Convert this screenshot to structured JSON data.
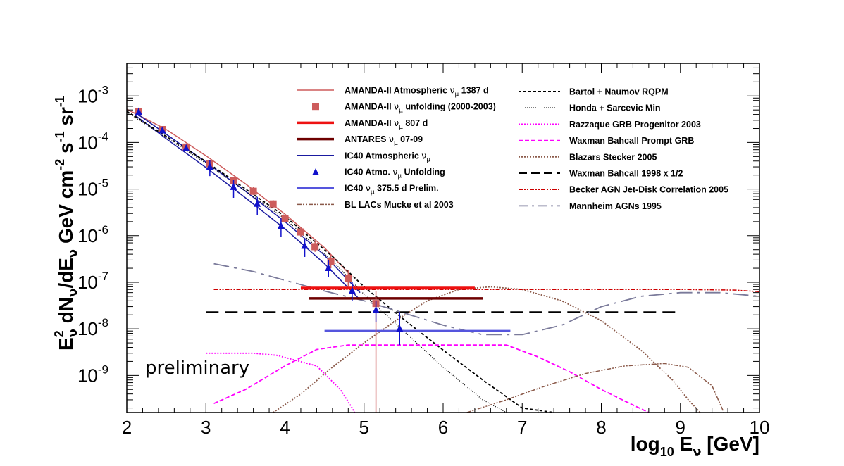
{
  "chart_data": {
    "type": "line",
    "log_y": true,
    "xlim": [
      2,
      10
    ],
    "ylim": [
      1.6e-10,
      0.005
    ],
    "x_ticks": [
      2,
      3,
      4,
      5,
      6,
      7,
      8,
      9,
      10
    ],
    "y_ticks": [
      {
        "value": 1e-09,
        "base": "10",
        "exp": "-9"
      },
      {
        "value": 1e-08,
        "base": "10",
        "exp": "-8"
      },
      {
        "value": 1e-07,
        "base": "10",
        "exp": "-7"
      },
      {
        "value": 1e-06,
        "base": "10",
        "exp": "-6"
      },
      {
        "value": 1e-05,
        "base": "10",
        "exp": "-5"
      },
      {
        "value": 0.0001,
        "base": "10",
        "exp": "-4"
      },
      {
        "value": 0.001,
        "base": "10",
        "exp": "-3"
      }
    ],
    "xlabel": {
      "pre": "log",
      "sub": "10",
      "mid": " E",
      "sub2": "ν",
      "post": " [GeV]"
    },
    "ylabel": {
      "p1": "E",
      "p1_sup": "2",
      "p1_sub": "ν",
      "p2": " dN",
      "p2_sub": "ν",
      "p3": "/dE",
      "p3_sub": "ν",
      "p4": " GeV cm",
      "p4_sup": "-2",
      "p5": " s",
      "p5_sup": "-1",
      "p6": " sr",
      "p6_sup": "-1"
    },
    "annotation": "preliminary",
    "series": [
      {
        "name": "AMANDA-II Atmospheric νμ 1387 d",
        "color": "#cd5c5c",
        "dash": "",
        "width": 1.5,
        "points": [
          [
            2.0,
            0.00052
          ],
          [
            2.5,
            0.00019
          ],
          [
            3.0,
            5.2e-05
          ],
          [
            3.5,
            1.3e-05
          ],
          [
            4.0,
            2.9e-06
          ],
          [
            4.5,
            5.5e-07
          ],
          [
            4.85,
            1.3e-07
          ]
        ]
      },
      {
        "name": "IC40 Atmospheric νμ",
        "color": "#1a1aa0",
        "dash": "",
        "width": 1.5,
        "points": [
          [
            2.1,
            0.00045
          ],
          [
            2.5,
            0.00015
          ],
          [
            3.0,
            3.8e-05
          ],
          [
            3.5,
            9e-06
          ],
          [
            4.0,
            2e-06
          ],
          [
            4.5,
            3.8e-07
          ],
          [
            4.95,
            6e-08
          ]
        ]
      },
      {
        "name": "IC40 Atmospheric νμ (lower band)",
        "color": "#1a1aa0",
        "dash": "",
        "width": 1.5,
        "points": [
          [
            2.1,
            0.00039
          ],
          [
            2.5,
            0.00012
          ],
          [
            3.0,
            2.9e-05
          ],
          [
            3.5,
            6.5e-06
          ],
          [
            4.0,
            1.4e-06
          ],
          [
            4.5,
            2.5e-07
          ],
          [
            4.95,
            4.2e-08
          ]
        ]
      },
      {
        "name": "Bartol + Naumov RQPM",
        "color": "#000000",
        "dash": "4,3",
        "width": 1.8,
        "points": [
          [
            2.0,
            0.00047
          ],
          [
            3.0,
            3.9e-05
          ],
          [
            4.0,
            2.6e-06
          ],
          [
            4.6,
            3.6e-07
          ],
          [
            5.0,
            8e-08
          ],
          [
            5.5,
            1.6e-08
          ],
          [
            6.0,
            3.5e-09
          ],
          [
            6.5,
            8e-10
          ],
          [
            7.0,
            2e-10
          ],
          [
            7.4,
            1.6e-10
          ]
        ]
      },
      {
        "name": "Honda + Sarcevic Min",
        "color": "#000000",
        "dash": "1,2",
        "width": 1.3,
        "points": [
          [
            2.0,
            0.00045
          ],
          [
            3.0,
            3.6e-05
          ],
          [
            4.0,
            2.3e-06
          ],
          [
            4.6,
            2.9e-07
          ],
          [
            5.0,
            5.5e-08
          ],
          [
            5.5,
            9e-09
          ],
          [
            6.0,
            1.5e-09
          ],
          [
            6.5,
            3e-10
          ],
          [
            6.8,
            1.6e-10
          ]
        ]
      },
      {
        "name": "Razzaque GRB Progenitor 2003",
        "color": "#ff00ff",
        "dash": "2,2",
        "width": 1.8,
        "points": [
          [
            3.0,
            3e-09
          ],
          [
            3.6,
            3e-09
          ],
          [
            3.9,
            2.7e-09
          ],
          [
            4.4,
            1.6e-09
          ],
          [
            4.7,
            5e-10
          ],
          [
            4.85,
            2e-10
          ],
          [
            4.88,
            1.6e-10
          ]
        ]
      },
      {
        "name": "Waxman Bahcall Prompt GRB",
        "color": "#ff00ff",
        "dash": "6,3",
        "width": 1.8,
        "points": [
          [
            3.1,
            2.5e-10
          ],
          [
            3.5,
            5e-10
          ],
          [
            4.0,
            1.6e-09
          ],
          [
            4.4,
            3.6e-09
          ],
          [
            4.8,
            4.5e-09
          ],
          [
            5.5,
            4.5e-09
          ],
          [
            6.2,
            4.5e-09
          ],
          [
            6.8,
            4.5e-09
          ],
          [
            7.2,
            2.5e-09
          ],
          [
            7.6,
            1.2e-09
          ],
          [
            8.0,
            5e-10
          ],
          [
            8.3,
            2.8e-10
          ],
          [
            8.6,
            1.6e-10
          ]
        ]
      },
      {
        "name": "Blazars Stecker 2005",
        "color": "#8b5a4a",
        "dash": "2,2",
        "width": 1.8,
        "points": [
          [
            3.85,
            1.6e-10
          ],
          [
            4.2,
            4e-10
          ],
          [
            4.6,
            1.5e-09
          ],
          [
            5.0,
            5e-09
          ],
          [
            5.4,
            1.5e-08
          ],
          [
            5.8,
            4e-08
          ],
          [
            6.2,
            7e-08
          ],
          [
            6.6,
            8e-08
          ],
          [
            7.0,
            7e-08
          ],
          [
            7.5,
            4e-08
          ],
          [
            8.0,
            1.5e-08
          ],
          [
            8.5,
            3.5e-09
          ],
          [
            8.9,
            8e-10
          ],
          [
            9.1,
            3e-10
          ],
          [
            9.25,
            1.6e-10
          ]
        ]
      },
      {
        "name": "Waxman Bahcall 1998 x 1/2",
        "color": "#000000",
        "dash": "18,9",
        "width": 2,
        "points": [
          [
            3.0,
            2.3e-08
          ],
          [
            9.0,
            2.3e-08
          ]
        ]
      },
      {
        "name": "Becker AGN Jet-Disk Correlation 2005",
        "color": "#cc0000",
        "dash": "6,2,2,2,2,2",
        "width": 1.5,
        "points": [
          [
            3.1,
            7e-08
          ],
          [
            6.0,
            7e-08
          ],
          [
            8.0,
            7e-08
          ],
          [
            9.0,
            7e-08
          ],
          [
            9.7,
            6.8e-08
          ],
          [
            10.0,
            6.3e-08
          ]
        ]
      },
      {
        "name": "Mannheim AGNs 1995",
        "color": "#7a7a9a",
        "dash": "22,7,4,7",
        "width": 1.8,
        "points": [
          [
            3.1,
            2.5e-07
          ],
          [
            3.6,
            1.7e-07
          ],
          [
            4.0,
            1.1e-07
          ],
          [
            4.5,
            6.5e-08
          ],
          [
            5.0,
            4e-08
          ],
          [
            5.5,
            2.2e-08
          ],
          [
            6.0,
            1.2e-08
          ],
          [
            6.5,
            7.5e-09
          ],
          [
            7.0,
            7.5e-09
          ],
          [
            7.5,
            1.2e-08
          ],
          [
            8.0,
            3e-08
          ],
          [
            8.5,
            5e-08
          ],
          [
            9.0,
            6e-08
          ],
          [
            9.5,
            6e-08
          ],
          [
            10.0,
            5e-08
          ]
        ]
      },
      {
        "name": "BL LACs Mucke et al 2003",
        "color": "#8b5a4a",
        "dash": "6,2,2,2,2,2",
        "width": 1.5,
        "points": [
          [
            6.3,
            1.6e-10
          ],
          [
            6.8,
            3e-10
          ],
          [
            7.3,
            6e-10
          ],
          [
            7.8,
            1.1e-09
          ],
          [
            8.3,
            1.6e-09
          ],
          [
            8.8,
            1.8e-09
          ],
          [
            9.1,
            1.5e-09
          ],
          [
            9.4,
            6e-10
          ],
          [
            9.55,
            1.6e-10
          ]
        ]
      }
    ],
    "limits": [
      {
        "name": "AMANDA-II νμ 807 d",
        "color": "#ee1111",
        "width": 4,
        "x": [
          4.2,
          6.4
        ],
        "y": 7.5e-08
      },
      {
        "name": "ANTARES νμ 07-09",
        "color": "#6e0000",
        "width": 3.5,
        "x": [
          4.3,
          6.5
        ],
        "y": 4.5e-08
      },
      {
        "name": "IC40 νμ 375.5 d Prelim.",
        "color": "#5555dd",
        "width": 3,
        "x": [
          4.5,
          6.85
        ],
        "y": 9e-09
      }
    ],
    "scatter": [
      {
        "name": "AMANDA-II νμ unfolding (2000-2003)",
        "color": "#cd5c5c",
        "marker": "square",
        "points": [
          {
            "x": 2.15,
            "y": 0.00046,
            "lo": 0.00039,
            "hi": 0.00052
          },
          {
            "x": 2.45,
            "y": 0.00019,
            "lo": 0.00017,
            "hi": 0.00021
          },
          {
            "x": 2.75,
            "y": 8e-05,
            "lo": 7e-05,
            "hi": 9e-05
          },
          {
            "x": 3.05,
            "y": 3.5e-05,
            "lo": 3e-05,
            "hi": 4e-05
          },
          {
            "x": 3.35,
            "y": 1.5e-05,
            "lo": 1.3e-05,
            "hi": 1.7e-05
          },
          {
            "x": 3.6,
            "y": 9e-06,
            "lo": 7.5e-06,
            "hi": 1.1e-05
          },
          {
            "x": 3.85,
            "y": 4.8e-06,
            "lo": 4e-06,
            "hi": 5.8e-06
          },
          {
            "x": 4.0,
            "y": 2.3e-06,
            "lo": 1.9e-06,
            "hi": 2.8e-06
          },
          {
            "x": 4.2,
            "y": 1.2e-06,
            "lo": 9.5e-07,
            "hi": 1.5e-06
          },
          {
            "x": 4.38,
            "y": 5.8e-07,
            "lo": 4.5e-07,
            "hi": 7.5e-07
          },
          {
            "x": 4.58,
            "y": 2.8e-07,
            "lo": 2e-07,
            "hi": 4e-07
          },
          {
            "x": 4.8,
            "y": 1.2e-07,
            "lo": 8e-08,
            "hi": 1.8e-07
          },
          {
            "x": 5.15,
            "y": 3.5e-08,
            "lo": 1.6e-10,
            "hi": 6.5e-08
          }
        ]
      },
      {
        "name": "IC40 Atmo. νμ Unfolding",
        "color": "#1111cc",
        "marker": "triangle",
        "points": [
          {
            "x": 2.15,
            "y": 0.00045,
            "lo": 0.00037,
            "hi": 0.00056
          },
          {
            "x": 2.45,
            "y": 0.00018,
            "lo": 0.00016,
            "hi": 0.0002
          },
          {
            "x": 2.75,
            "y": 7.5e-05,
            "lo": 6.8e-05,
            "hi": 8.5e-05
          },
          {
            "x": 3.05,
            "y": 3e-05,
            "lo": 1.9e-05,
            "hi": 4.2e-05
          },
          {
            "x": 3.35,
            "y": 1.1e-05,
            "lo": 6.5e-06,
            "hi": 1.6e-05
          },
          {
            "x": 3.65,
            "y": 4.8e-06,
            "lo": 2.8e-06,
            "hi": 6.8e-06
          },
          {
            "x": 3.95,
            "y": 1.6e-06,
            "lo": 9.5e-07,
            "hi": 2.3e-06
          },
          {
            "x": 4.25,
            "y": 6e-07,
            "lo": 3.5e-07,
            "hi": 8.5e-07
          },
          {
            "x": 4.55,
            "y": 2e-07,
            "lo": 1.3e-07,
            "hi": 3e-07
          },
          {
            "x": 4.85,
            "y": 6.5e-08,
            "lo": 4e-08,
            "hi": 1e-07
          },
          {
            "x": 5.15,
            "y": 2.5e-08,
            "lo": 1.4e-08,
            "hi": 4e-08
          },
          {
            "x": 5.45,
            "y": 1e-08,
            "lo": 4.5e-09,
            "hi": 2.3e-08
          }
        ]
      }
    ],
    "legend_left": [
      {
        "kind": "line",
        "color": "#cd5c5c",
        "width": 1.5,
        "t1": "AMANDA-II Atmospheric ",
        "sym": "ν",
        "sub": "μ",
        "t2": " 1387 d"
      },
      {
        "kind": "square",
        "color": "#cd5c5c",
        "t1": "AMANDA-II ",
        "sym": "ν",
        "sub": "μ",
        "t2": " unfolding (2000-2003)"
      },
      {
        "kind": "line",
        "color": "#ee1111",
        "width": 3.5,
        "t1": "AMANDA-II ",
        "sym": "ν",
        "sub": "μ",
        "t2": " 807 d"
      },
      {
        "kind": "line",
        "color": "#6e0000",
        "width": 3.5,
        "t1": "ANTARES ",
        "sym": "ν",
        "sub": "μ",
        "t2": " 07-09"
      },
      {
        "kind": "line",
        "color": "#1a1aa0",
        "width": 1.5,
        "t1": "IC40 Atmospheric ",
        "sym": "ν",
        "sub": "μ",
        "t2": ""
      },
      {
        "kind": "triangle",
        "color": "#1111cc",
        "t1": "IC40 Atmo. ",
        "sym": "ν",
        "sub": "μ",
        "t2": " Unfolding"
      },
      {
        "kind": "line",
        "color": "#5555dd",
        "width": 3,
        "t1": "IC40 ",
        "sym": "ν",
        "sub": "μ",
        "t2": " 375.5 d Prelim."
      },
      {
        "kind": "line",
        "color": "#8b5a4a",
        "width": 1.5,
        "dash": "6,2,2,2,2,2",
        "t1": "BL LACs Mucke et al 2003",
        "sym": "",
        "sub": "",
        "t2": ""
      }
    ],
    "legend_right": [
      {
        "kind": "line",
        "color": "#000000",
        "width": 2,
        "dash": "4,3",
        "t1": "Bartol + Naumov RQPM"
      },
      {
        "kind": "line",
        "color": "#000000",
        "width": 1.3,
        "dash": "1,2",
        "t1": "Honda + Sarcevic Min"
      },
      {
        "kind": "line",
        "color": "#ff00ff",
        "width": 1.8,
        "dash": "2,2",
        "t1": "Razzaque GRB Progenitor 2003"
      },
      {
        "kind": "line",
        "color": "#ff00ff",
        "width": 1.8,
        "dash": "6,3",
        "t1": "Waxman Bahcall Prompt GRB"
      },
      {
        "kind": "line",
        "color": "#8b5a4a",
        "width": 1.8,
        "dash": "2,2",
        "t1": "Blazars Stecker 2005"
      },
      {
        "kind": "line",
        "color": "#000000",
        "width": 2,
        "dash": "12,6",
        "t1": "Waxman Bahcall 1998 x 1/2"
      },
      {
        "kind": "line",
        "color": "#cc0000",
        "width": 1.5,
        "dash": "6,2,2,2,2,2",
        "t1": "Becker AGN Jet-Disk Correlation 2005"
      },
      {
        "kind": "line",
        "color": "#7a7a9a",
        "width": 1.8,
        "dash": "14,5,3,5",
        "t1": "Mannheim AGNs 1995"
      }
    ]
  }
}
